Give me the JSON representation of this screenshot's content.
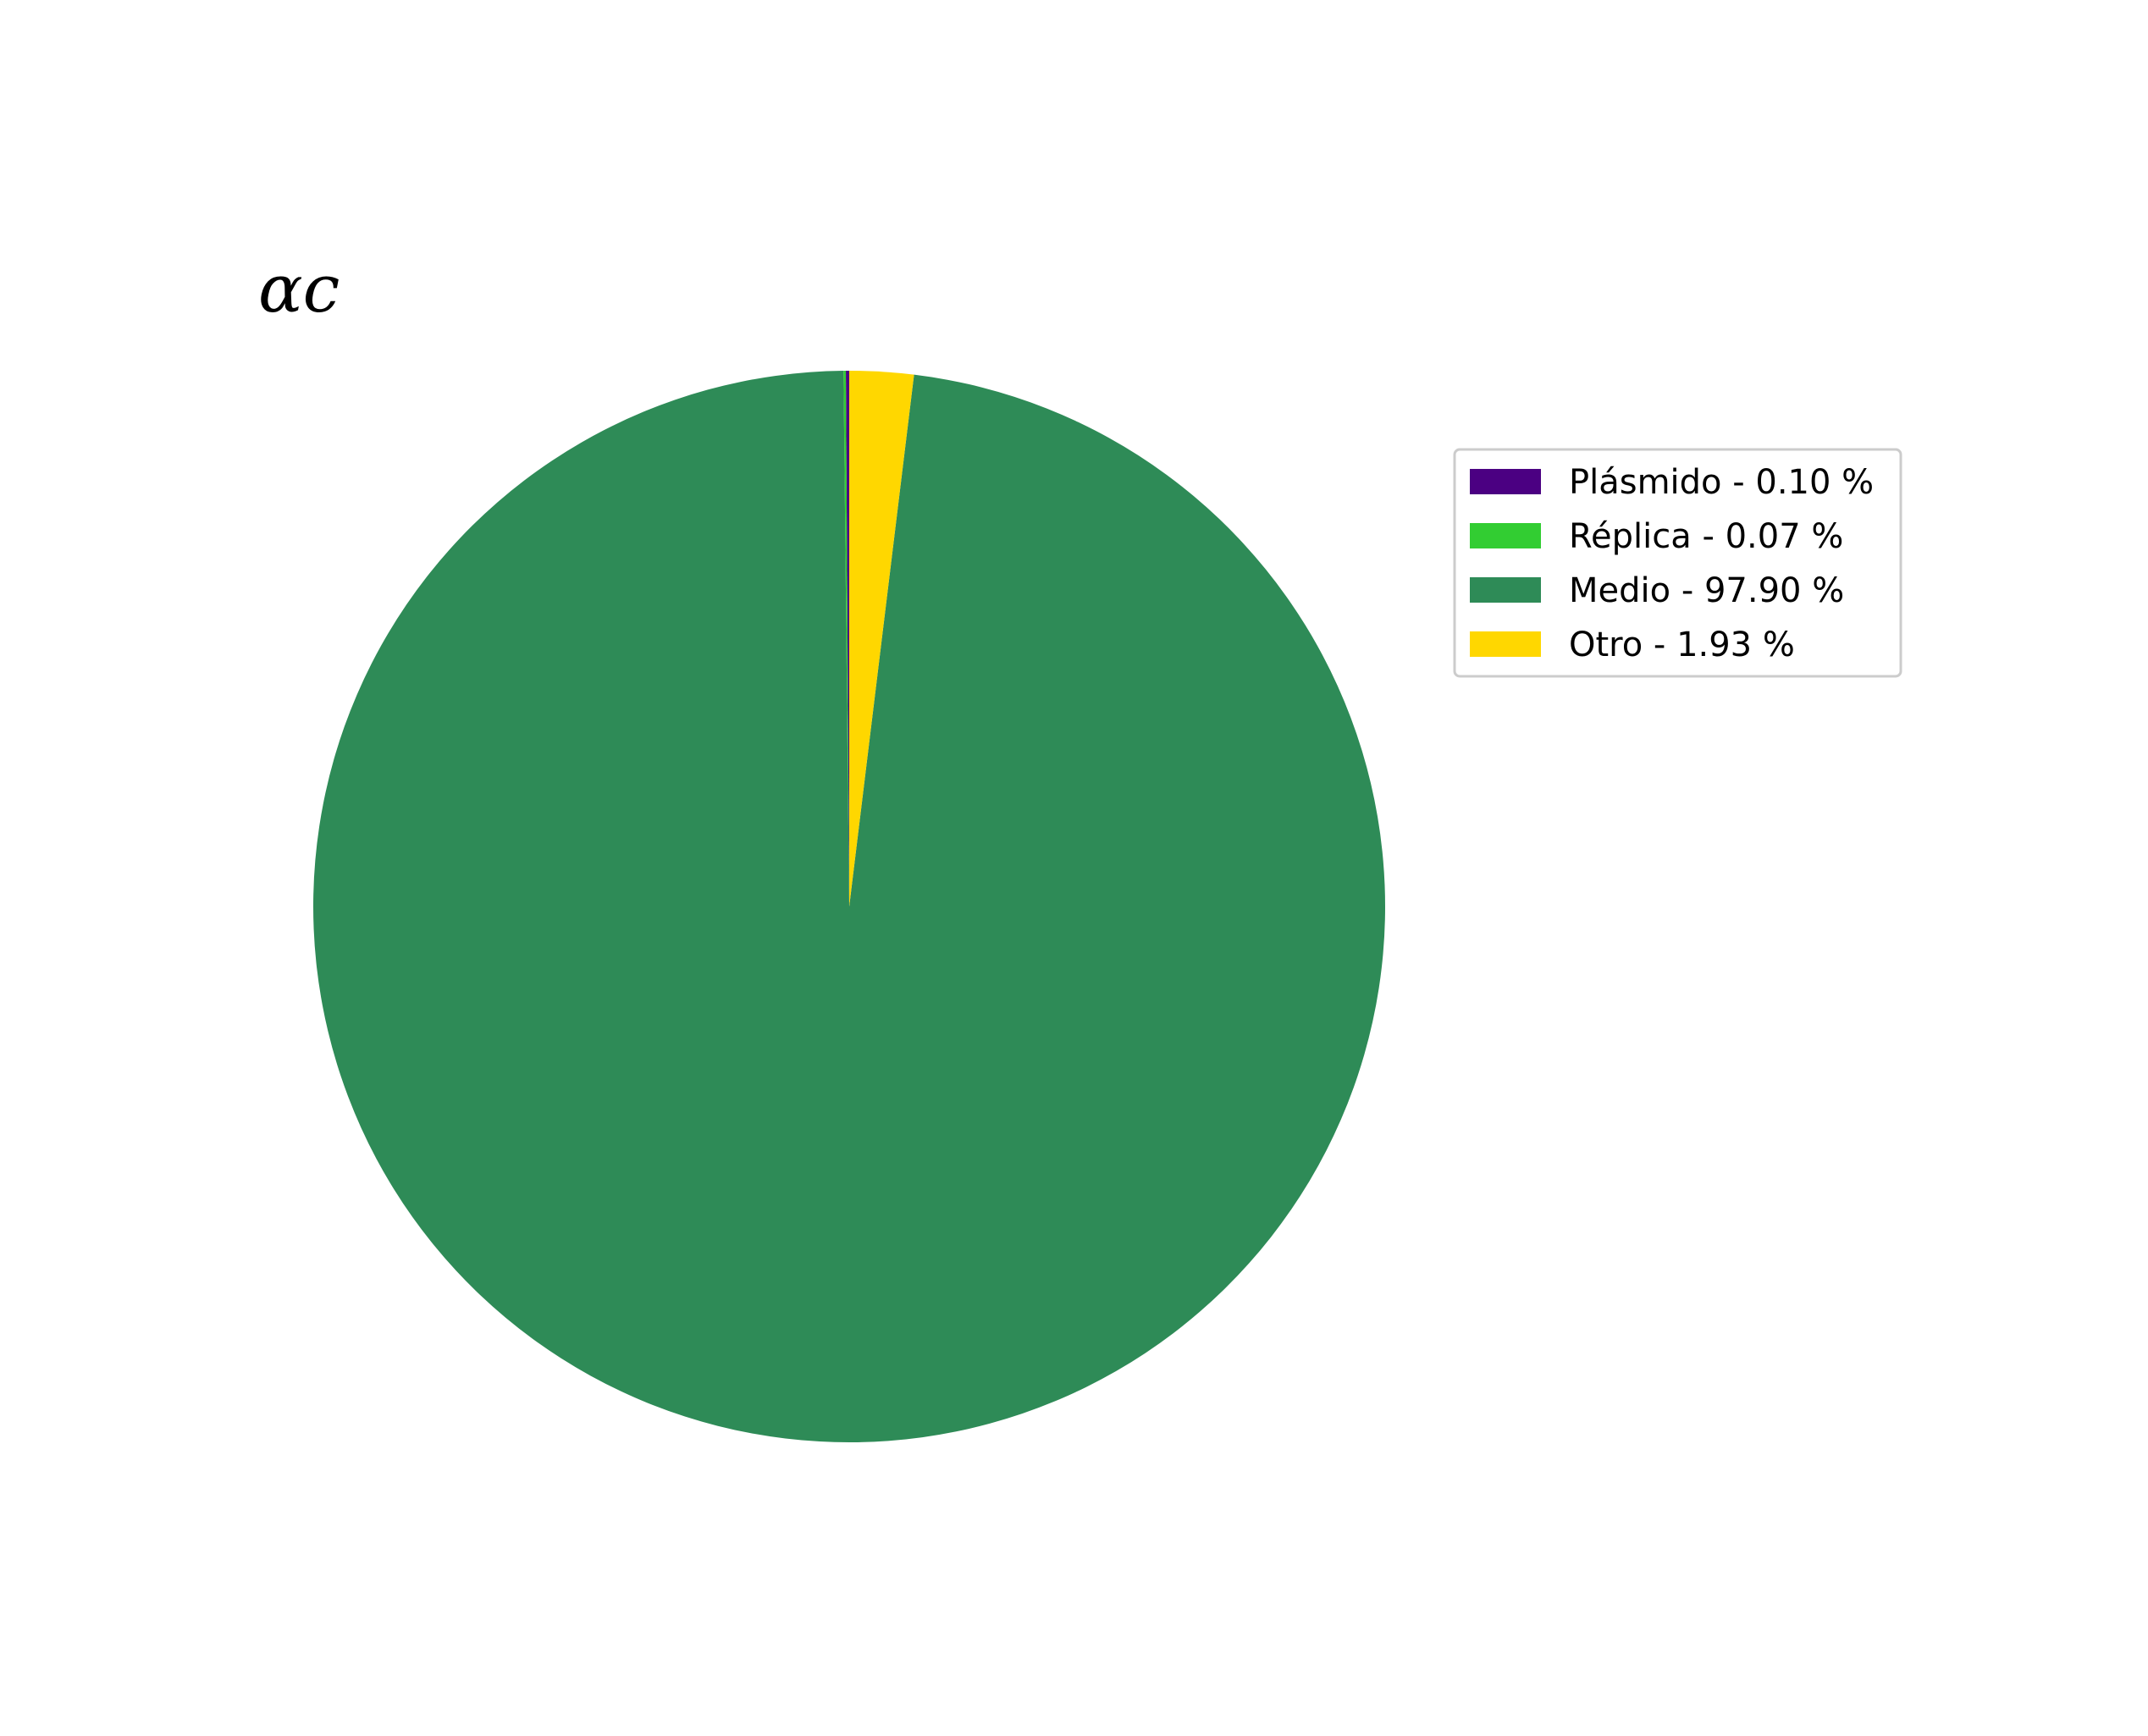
{
  "chart_data": {
    "type": "pie",
    "title": "αc",
    "slices": [
      {
        "label": "Plásmido - 0.10 %",
        "value": 0.1,
        "color": "#4b0082"
      },
      {
        "label": "Réplica - 0.07 %",
        "value": 0.07,
        "color": "#32cd32"
      },
      {
        "label": "Medio - 97.90 %",
        "value": 97.9,
        "color": "#2e8b57"
      },
      {
        "label": "Otro - 1.93 %",
        "value": 1.93,
        "color": "#ffd700"
      }
    ],
    "start_angle_deg": 90,
    "direction": "counterclockwise",
    "legend_position": "right"
  }
}
